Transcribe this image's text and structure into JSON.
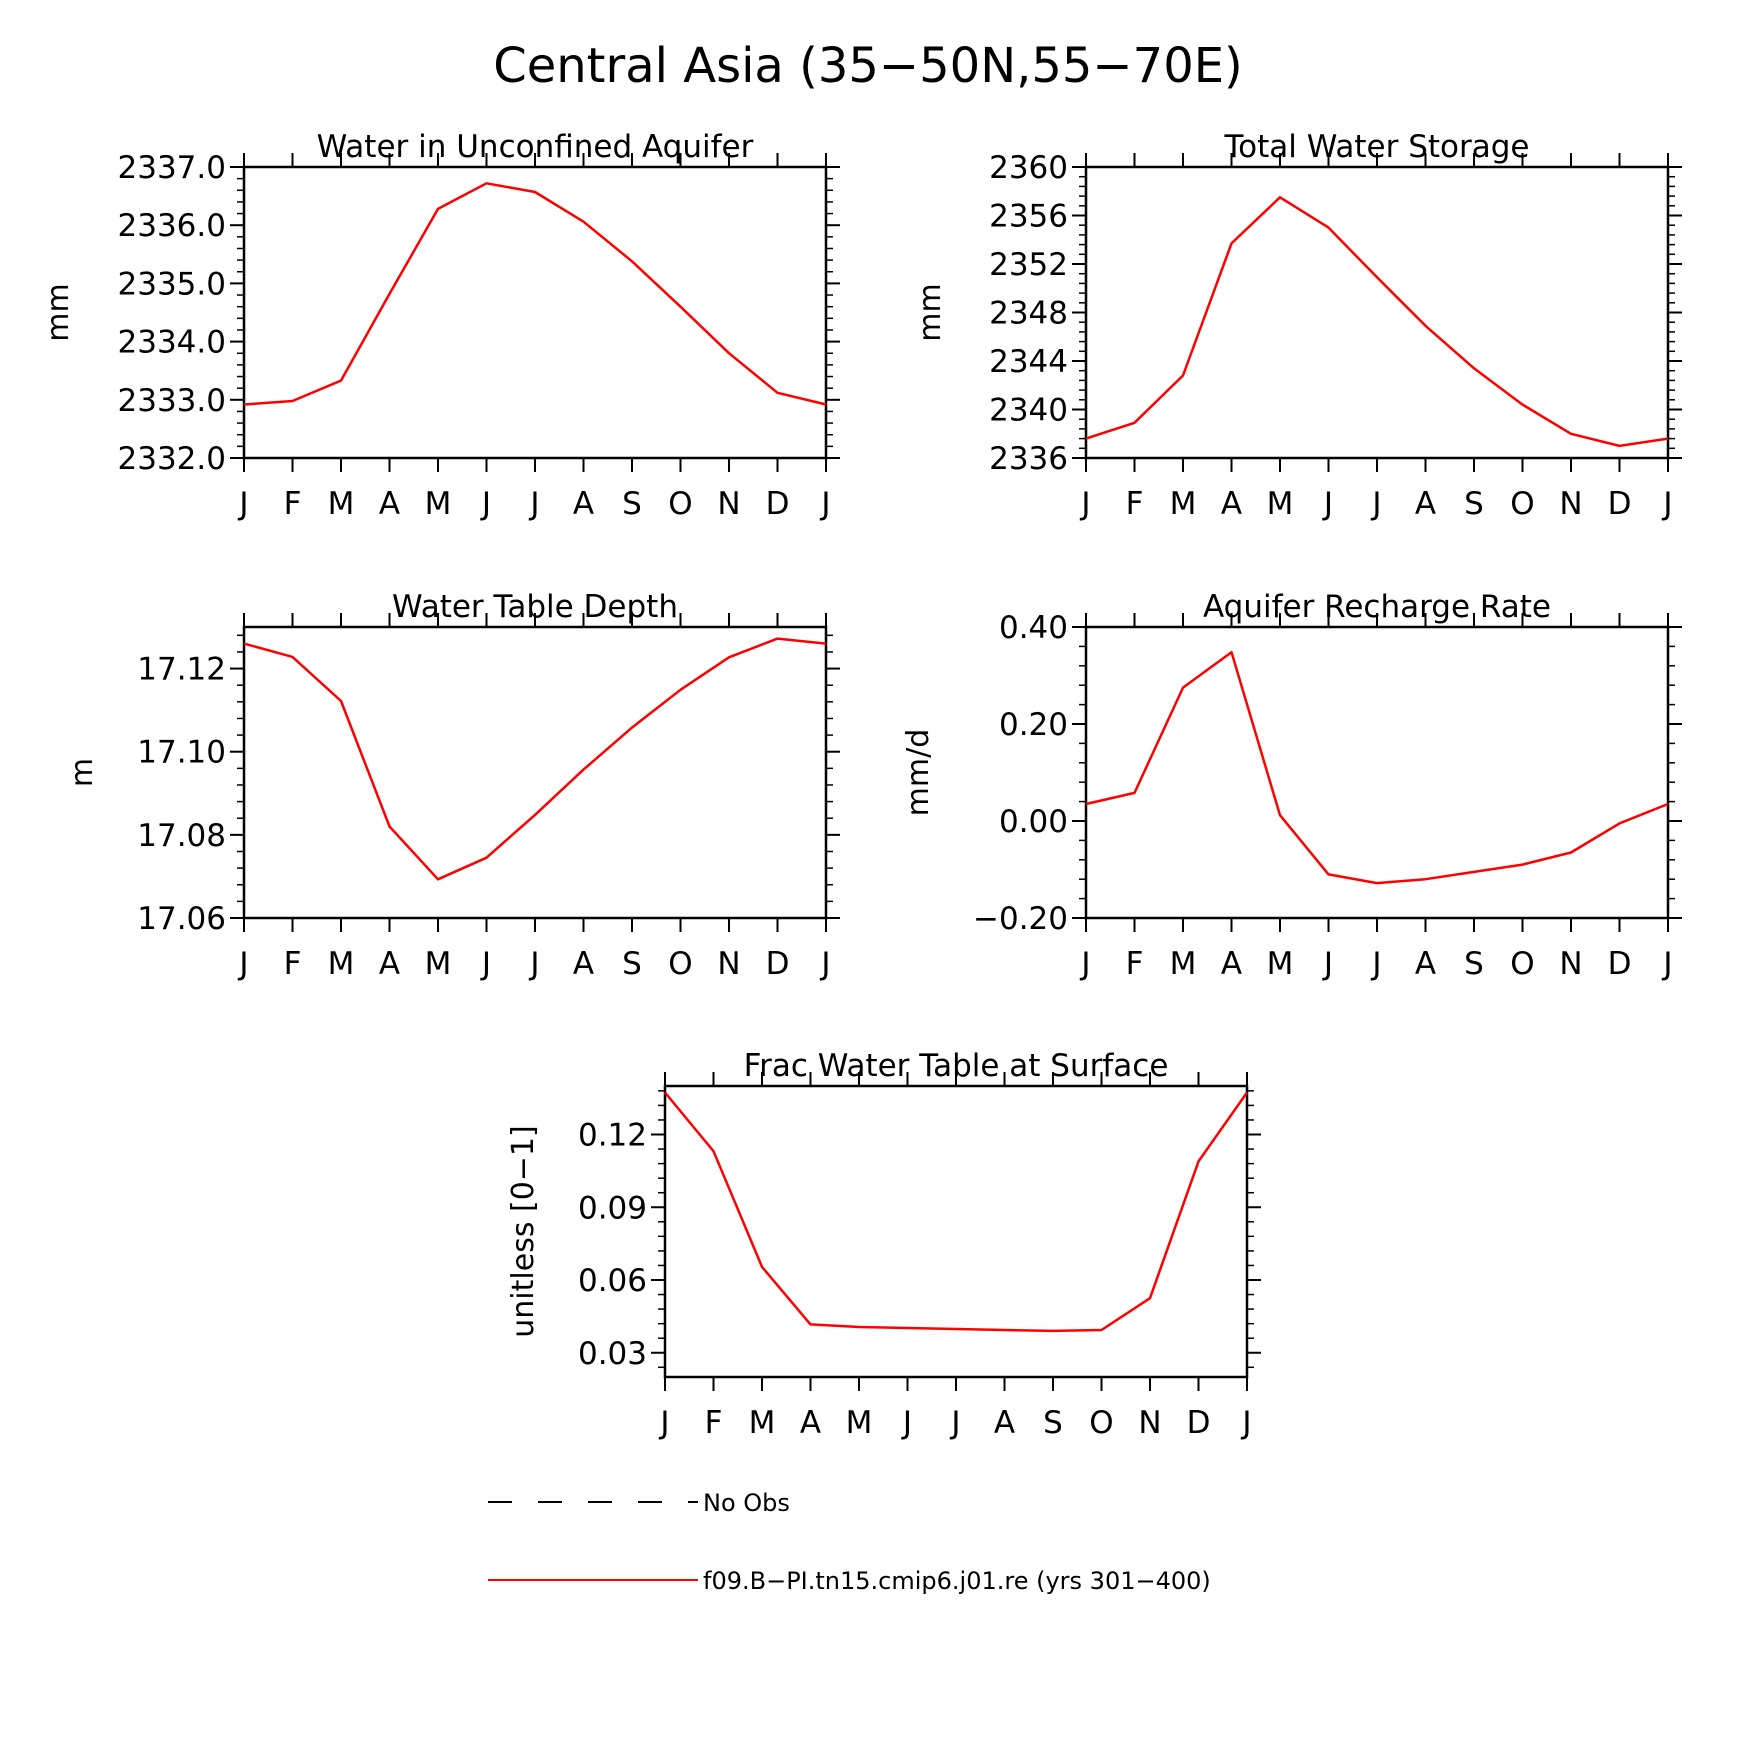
{
  "figure": {
    "title": "Central Asia (35−50N,55−70E)",
    "line_color": "#ff0000"
  },
  "legend": {
    "obs_label": "No Obs",
    "model_label": "f09.B−PI.tn15.cmip6.j01.re (yrs 301−400)",
    "model_color": "#ff0000",
    "obs_color": "#000000"
  },
  "chart_data": [
    {
      "type": "line",
      "title": "Water in Unconfined Aquifer",
      "ylabel": "mm",
      "categories": [
        "J",
        "F",
        "M",
        "A",
        "M",
        "J",
        "J",
        "A",
        "S",
        "O",
        "N",
        "D",
        "J"
      ],
      "ylim": [
        2332.0,
        2337.0
      ],
      "yticks": [
        2332.0,
        2333.0,
        2334.0,
        2335.0,
        2336.0,
        2337.0
      ],
      "ytick_labels": [
        "2332.0",
        "2333.0",
        "2334.0",
        "2335.0",
        "2336.0",
        "2337.0"
      ],
      "series": [
        {
          "values": [
            2332.92,
            2332.98,
            2333.33,
            2334.82,
            2336.28,
            2336.72,
            2336.57,
            2336.06,
            2335.38,
            2334.6,
            2333.8,
            2333.12,
            2332.92
          ]
        }
      ]
    },
    {
      "type": "line",
      "title": "Total Water Storage",
      "ylabel": "mm",
      "categories": [
        "J",
        "F",
        "M",
        "A",
        "M",
        "J",
        "J",
        "A",
        "S",
        "O",
        "N",
        "D",
        "J"
      ],
      "ylim": [
        2336,
        2360
      ],
      "yticks": [
        2336,
        2340,
        2344,
        2348,
        2352,
        2356,
        2360
      ],
      "ytick_labels": [
        "2336",
        "2340",
        "2344",
        "2348",
        "2352",
        "2356",
        "2360"
      ],
      "series": [
        {
          "values": [
            2337.6,
            2338.9,
            2342.8,
            2353.7,
            2357.5,
            2355.0,
            2350.9,
            2346.9,
            2343.4,
            2340.4,
            2338.0,
            2337.0,
            2337.6
          ]
        }
      ]
    },
    {
      "type": "line",
      "title": "Water Table Depth",
      "ylabel": "m",
      "categories": [
        "J",
        "F",
        "M",
        "A",
        "M",
        "J",
        "J",
        "A",
        "S",
        "O",
        "N",
        "D",
        "J"
      ],
      "ylim": [
        17.06,
        17.13
      ],
      "yticks": [
        17.06,
        17.08,
        17.1,
        17.12
      ],
      "ytick_labels": [
        "17.06",
        "17.08",
        "17.10",
        "17.12"
      ],
      "series": [
        {
          "values": [
            17.126,
            17.1228,
            17.1122,
            17.082,
            17.0693,
            17.0745,
            17.0848,
            17.0957,
            17.1058,
            17.1149,
            17.1227,
            17.1272,
            17.126
          ]
        }
      ]
    },
    {
      "type": "line",
      "title": "Aquifer Recharge Rate",
      "ylabel": "mm/d",
      "categories": [
        "J",
        "F",
        "M",
        "A",
        "M",
        "J",
        "J",
        "A",
        "S",
        "O",
        "N",
        "D",
        "J"
      ],
      "ylim": [
        -0.2,
        0.4
      ],
      "yticks": [
        -0.2,
        0.0,
        0.2,
        0.4
      ],
      "ytick_labels": [
        "−0.20",
        "0.00",
        "0.20",
        "0.40"
      ],
      "series": [
        {
          "values": [
            0.035,
            0.058,
            0.275,
            0.348,
            0.012,
            -0.11,
            -0.128,
            -0.12,
            -0.105,
            -0.09,
            -0.065,
            -0.005,
            0.035
          ]
        }
      ]
    },
    {
      "type": "line",
      "title": "Frac Water Table at Surface",
      "ylabel": "unitless [0−1]",
      "categories": [
        "J",
        "F",
        "M",
        "A",
        "M",
        "J",
        "J",
        "A",
        "S",
        "O",
        "N",
        "D",
        "J"
      ],
      "ylim": [
        0.02,
        0.14
      ],
      "yticks": [
        0.03,
        0.06,
        0.09,
        0.12
      ],
      "ytick_labels": [
        "0.03",
        "0.06",
        "0.09",
        "0.12"
      ],
      "series": [
        {
          "values": [
            0.1373,
            0.1131,
            0.0654,
            0.0417,
            0.0406,
            0.0402,
            0.0398,
            0.0394,
            0.039,
            0.0394,
            0.0525,
            0.1089,
            0.1373
          ]
        }
      ]
    }
  ]
}
